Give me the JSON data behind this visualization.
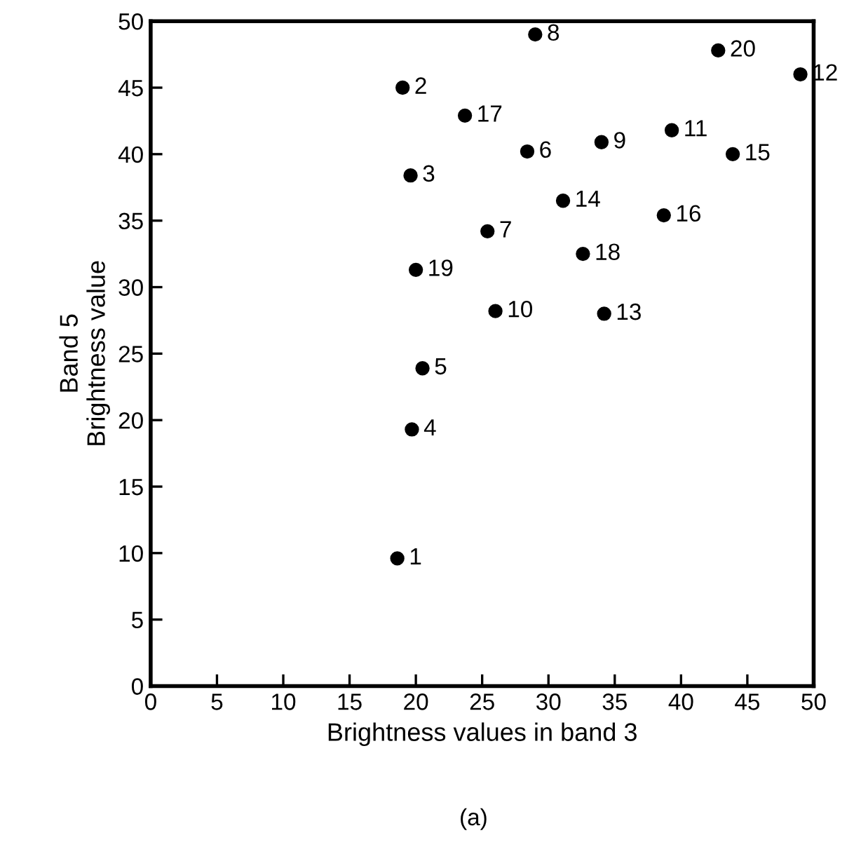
{
  "chart_data": {
    "type": "scatter",
    "xlabel": "Brightness values in band 3",
    "ylabel": "Band 5\nBrightness value",
    "x": [
      18.6,
      19.0,
      19.6,
      19.7,
      20.5,
      28.4,
      25.4,
      29.0,
      34.0,
      26.0,
      39.3,
      49.0,
      34.2,
      31.1,
      43.9,
      38.7,
      23.7,
      32.6,
      20.0,
      42.8
    ],
    "series": [
      {
        "color": "#000000",
        "values": [
          9.6,
          45.0,
          38.4,
          19.3,
          23.9,
          40.2,
          34.2,
          49.0,
          40.9,
          28.2,
          41.8,
          46.0,
          28.0,
          36.5,
          40.0,
          35.4,
          42.9,
          32.5,
          31.3,
          47.8
        ]
      }
    ],
    "marker": "circle",
    "xlim": [
      0,
      50
    ],
    "ylim": [
      0,
      50
    ],
    "xticks": [
      0,
      5,
      10,
      15,
      20,
      25,
      30,
      35,
      40,
      45,
      50
    ],
    "yticks": [
      0,
      5,
      10,
      15,
      20,
      25,
      30,
      35,
      40,
      45,
      50
    ],
    "grid": false,
    "annotations": [
      {
        "text": "1",
        "x": 18.6,
        "y": 9.6
      },
      {
        "text": "2",
        "x": 19.0,
        "y": 45.0
      },
      {
        "text": "3",
        "x": 19.6,
        "y": 38.4
      },
      {
        "text": "4",
        "x": 19.7,
        "y": 19.3
      },
      {
        "text": "5",
        "x": 20.5,
        "y": 23.9
      },
      {
        "text": "6",
        "x": 28.4,
        "y": 40.2
      },
      {
        "text": "7",
        "x": 25.4,
        "y": 34.2
      },
      {
        "text": "8",
        "x": 29.0,
        "y": 49.0
      },
      {
        "text": "9",
        "x": 34.0,
        "y": 40.9
      },
      {
        "text": "10",
        "x": 26.0,
        "y": 28.2
      },
      {
        "text": "11",
        "x": 39.3,
        "y": 41.8
      },
      {
        "text": "12",
        "x": 49.0,
        "y": 46.0
      },
      {
        "text": "13",
        "x": 34.2,
        "y": 28.0
      },
      {
        "text": "14",
        "x": 31.1,
        "y": 36.5
      },
      {
        "text": "15",
        "x": 43.9,
        "y": 40.0
      },
      {
        "text": "16",
        "x": 38.7,
        "y": 35.4
      },
      {
        "text": "17",
        "x": 23.7,
        "y": 42.9
      },
      {
        "text": "18",
        "x": 32.6,
        "y": 32.5
      },
      {
        "text": "19",
        "x": 20.0,
        "y": 31.3
      },
      {
        "text": "20",
        "x": 42.8,
        "y": 47.8
      },
      "(a)"
    ]
  }
}
